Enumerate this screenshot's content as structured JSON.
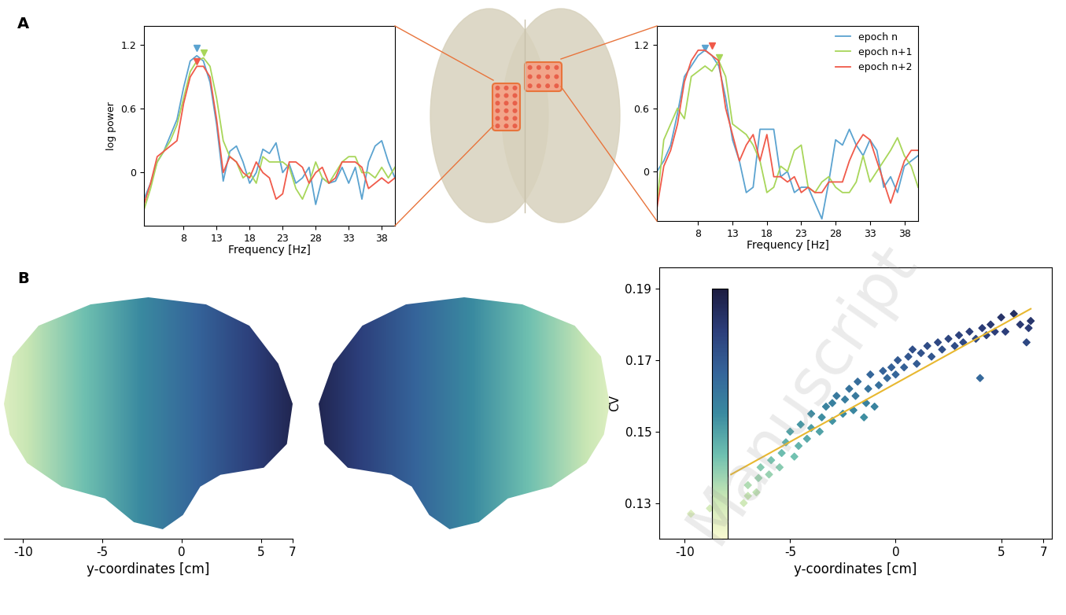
{
  "panel_labels": [
    "A",
    "B"
  ],
  "watermark": "Manuscript",
  "chart_data": [
    {
      "type": "line",
      "ylabel": "log power",
      "xlabel": "Frequency [Hz]",
      "xlim": [
        2,
        40
      ],
      "xticks": [
        8,
        13,
        18,
        23,
        28,
        33,
        38
      ],
      "ylim": [
        -0.5,
        1.38
      ],
      "yticks": [
        0,
        0.6,
        1.2
      ],
      "x": [
        2,
        3,
        4,
        5,
        6,
        7,
        8,
        9,
        10,
        11,
        12,
        13,
        14,
        15,
        16,
        17,
        18,
        19,
        20,
        21,
        22,
        23,
        24,
        25,
        26,
        27,
        28,
        29,
        30,
        31,
        32,
        33,
        34,
        35,
        36,
        37,
        38,
        39,
        40
      ],
      "series": [
        {
          "color": "#5ba3d0",
          "peak": [
            10,
            1.17
          ],
          "values": [
            -0.25,
            -0.1,
            0.1,
            0.2,
            0.35,
            0.5,
            0.8,
            1.05,
            1.1,
            1.05,
            0.85,
            0.45,
            -0.08,
            0.2,
            0.25,
            0.1,
            -0.1,
            0.0,
            0.22,
            0.18,
            0.28,
            0.0,
            0.08,
            -0.1,
            -0.05,
            0.05,
            -0.3,
            -0.05,
            -0.1,
            -0.08,
            0.05,
            -0.1,
            0.05,
            -0.25,
            0.1,
            0.25,
            0.3,
            0.1,
            -0.05
          ]
        },
        {
          "color": "#a8d65a",
          "peak": [
            11,
            1.13
          ],
          "values": [
            -0.35,
            -0.15,
            0.1,
            0.2,
            0.3,
            0.45,
            0.7,
            0.95,
            1.05,
            1.08,
            1.0,
            0.7,
            0.3,
            0.15,
            0.1,
            -0.05,
            0.0,
            -0.1,
            0.15,
            0.1,
            0.1,
            0.1,
            0.05,
            -0.15,
            -0.25,
            -0.1,
            0.1,
            -0.05,
            -0.1,
            0.0,
            0.1,
            0.15,
            0.15,
            0.0,
            0.0,
            -0.05,
            0.05,
            -0.05,
            0.05
          ]
        },
        {
          "color": "#f05a4a",
          "peak": [
            10,
            1.05
          ],
          "values": [
            -0.3,
            -0.1,
            0.15,
            0.2,
            0.25,
            0.3,
            0.65,
            0.9,
            1.0,
            1.0,
            0.9,
            0.5,
            0.0,
            0.15,
            0.1,
            0.0,
            -0.05,
            0.1,
            0.0,
            -0.05,
            -0.25,
            -0.2,
            0.1,
            0.1,
            0.05,
            -0.1,
            0.0,
            0.05,
            -0.1,
            -0.05,
            0.1,
            0.1,
            0.1,
            0.05,
            -0.15,
            -0.1,
            -0.05,
            -0.1,
            -0.05
          ]
        }
      ]
    },
    {
      "type": "line",
      "xlabel": "Frequency [Hz]",
      "legend": "upper right",
      "xlim": [
        2,
        40
      ],
      "xticks": [
        8,
        13,
        18,
        23,
        28,
        33,
        38
      ],
      "ylim": [
        -0.47,
        1.38
      ],
      "yticks": [
        0,
        0.6,
        1.2
      ],
      "x": [
        2,
        3,
        4,
        5,
        6,
        7,
        8,
        9,
        10,
        11,
        12,
        13,
        14,
        15,
        16,
        17,
        18,
        19,
        20,
        21,
        22,
        23,
        24,
        25,
        26,
        27,
        28,
        29,
        30,
        31,
        32,
        33,
        34,
        35,
        36,
        37,
        38,
        39,
        40
      ],
      "series": [
        {
          "name": "epoch n",
          "color": "#5ba3d0",
          "peak": [
            9,
            1.17
          ],
          "values": [
            0.0,
            0.1,
            0.25,
            0.55,
            0.9,
            1.0,
            1.1,
            1.15,
            1.1,
            1.0,
            0.7,
            0.3,
            0.1,
            -0.2,
            -0.15,
            0.4,
            0.4,
            0.4,
            -0.05,
            0.0,
            -0.2,
            -0.15,
            -0.15,
            -0.3,
            -0.45,
            -0.1,
            0.3,
            0.25,
            0.4,
            0.25,
            0.15,
            0.3,
            0.2,
            -0.15,
            -0.05,
            -0.2,
            0.05,
            0.1,
            0.15
          ]
        },
        {
          "name": "epoch n+1",
          "color": "#a8d65a",
          "peak": [
            11,
            1.08
          ],
          "values": [
            -0.3,
            0.3,
            0.45,
            0.6,
            0.5,
            0.9,
            0.95,
            1.0,
            0.95,
            1.05,
            0.9,
            0.45,
            0.4,
            0.35,
            0.25,
            0.1,
            -0.2,
            -0.15,
            0.05,
            0.0,
            0.2,
            0.25,
            -0.15,
            -0.2,
            -0.1,
            -0.05,
            -0.15,
            -0.2,
            -0.2,
            -0.1,
            0.15,
            -0.1,
            0.0,
            0.1,
            0.2,
            0.32,
            0.15,
            0.05,
            -0.15
          ]
        },
        {
          "name": "epoch n+2",
          "color": "#f05a4a",
          "peak": [
            10,
            1.19
          ],
          "values": [
            -0.35,
            0.05,
            0.2,
            0.45,
            0.85,
            1.05,
            1.15,
            1.15,
            1.1,
            1.05,
            0.6,
            0.35,
            0.1,
            0.25,
            0.35,
            0.1,
            0.35,
            -0.05,
            -0.05,
            -0.1,
            -0.05,
            -0.2,
            -0.15,
            -0.2,
            -0.2,
            -0.1,
            -0.1,
            -0.1,
            0.1,
            0.25,
            0.35,
            0.3,
            0.1,
            -0.1,
            -0.3,
            -0.1,
            0.1,
            0.2,
            0.2
          ]
        }
      ]
    },
    {
      "type": "surface",
      "xlabel": "y-coordinates [cm]",
      "xlim": [
        -11.2,
        7
      ],
      "xticks": [
        -10,
        -5,
        0,
        5,
        7
      ]
    },
    {
      "type": "scatter",
      "xlabel": "y-coordinates [cm]",
      "ylabel": "CV",
      "xlim": [
        -11.2,
        7.4
      ],
      "xticks": [
        -10,
        -5,
        0,
        5,
        7
      ],
      "ylim": [
        0.12,
        0.196
      ],
      "yticks": [
        0.13,
        0.15,
        0.17,
        0.19
      ],
      "colorbar_range": [
        0.12,
        0.19
      ],
      "x": [
        -9.7,
        -8.8,
        -7.2,
        -7.0,
        -7.0,
        -6.6,
        -6.5,
        -6.4,
        -6.0,
        -5.9,
        -5.5,
        -5.4,
        -5.2,
        -5.0,
        -4.8,
        -4.6,
        -4.5,
        -4.2,
        -4.0,
        -4.0,
        -3.6,
        -3.5,
        -3.3,
        -3.0,
        -3.0,
        -2.8,
        -2.5,
        -2.4,
        -2.2,
        -2.0,
        -1.9,
        -1.8,
        -1.5,
        -1.4,
        -1.3,
        -1.2,
        -1.0,
        -0.8,
        -0.6,
        -0.4,
        -0.2,
        0.0,
        0.1,
        0.4,
        0.6,
        0.8,
        1.0,
        1.2,
        1.5,
        1.7,
        2.0,
        2.2,
        2.5,
        2.8,
        3.0,
        3.2,
        3.5,
        3.8,
        4.0,
        4.1,
        4.3,
        4.5,
        4.7,
        5.0,
        5.2,
        5.6,
        5.9,
        6.2,
        6.3,
        6.4
      ],
      "values": [
        0.127,
        0.1285,
        0.13,
        0.132,
        0.135,
        0.133,
        0.137,
        0.14,
        0.138,
        0.142,
        0.14,
        0.144,
        0.147,
        0.15,
        0.143,
        0.146,
        0.152,
        0.148,
        0.151,
        0.155,
        0.15,
        0.154,
        0.157,
        0.153,
        0.158,
        0.16,
        0.155,
        0.159,
        0.162,
        0.156,
        0.16,
        0.164,
        0.154,
        0.158,
        0.162,
        0.166,
        0.157,
        0.163,
        0.167,
        0.165,
        0.168,
        0.166,
        0.17,
        0.168,
        0.171,
        0.173,
        0.169,
        0.172,
        0.174,
        0.171,
        0.175,
        0.173,
        0.176,
        0.174,
        0.177,
        0.175,
        0.178,
        0.176,
        0.165,
        0.179,
        0.177,
        0.18,
        0.178,
        0.182,
        0.178,
        0.183,
        0.18,
        0.175,
        0.179,
        0.181
      ],
      "fit": {
        "color": "#e8b830",
        "x": [
          -7.8,
          6.4
        ],
        "values": [
          0.138,
          0.1844
        ]
      }
    }
  ]
}
